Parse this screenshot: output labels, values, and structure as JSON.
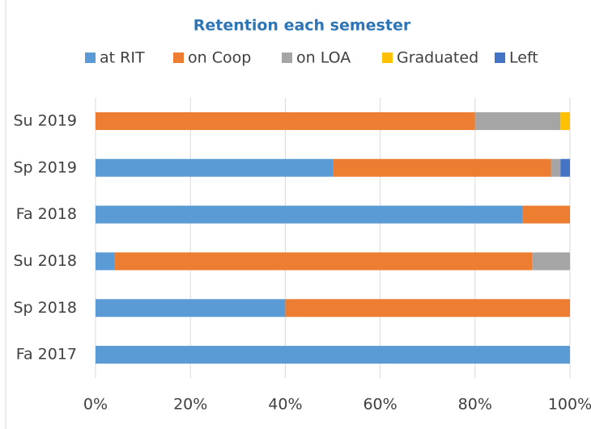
{
  "chart_data": {
    "type": "stacked_barh",
    "title": "Retention each semester",
    "categories": [
      "Fa 2017",
      "Sp 2018",
      "Su 2018",
      "Fa 2018",
      "Sp 2019",
      "Su 2019"
    ],
    "series": [
      {
        "name": "at RIT",
        "color": "#5b9bd5",
        "values": [
          100,
          40,
          4,
          90,
          50,
          0
        ]
      },
      {
        "name": "on Coop",
        "color": "#ed7d31",
        "values": [
          0,
          60,
          88,
          10,
          46,
          80
        ]
      },
      {
        "name": "on LOA",
        "color": "#a5a5a5",
        "values": [
          0,
          0,
          8,
          0,
          2,
          18
        ]
      },
      {
        "name": "Graduated",
        "color": "#ffc000",
        "values": [
          0,
          0,
          0,
          0,
          0,
          2
        ]
      },
      {
        "name": "Left",
        "color": "#4472c4",
        "values": [
          0,
          0,
          0,
          0,
          2,
          0
        ]
      }
    ],
    "xlim": [
      0,
      100
    ],
    "xticks": [
      {
        "value": 0,
        "label": "0%"
      },
      {
        "value": 20,
        "label": "20%"
      },
      {
        "value": 40,
        "label": "40%"
      },
      {
        "value": 60,
        "label": "60%"
      },
      {
        "value": 80,
        "label": "80%"
      },
      {
        "value": 100,
        "label": "100%"
      }
    ],
    "grid": true,
    "legend": "top"
  }
}
